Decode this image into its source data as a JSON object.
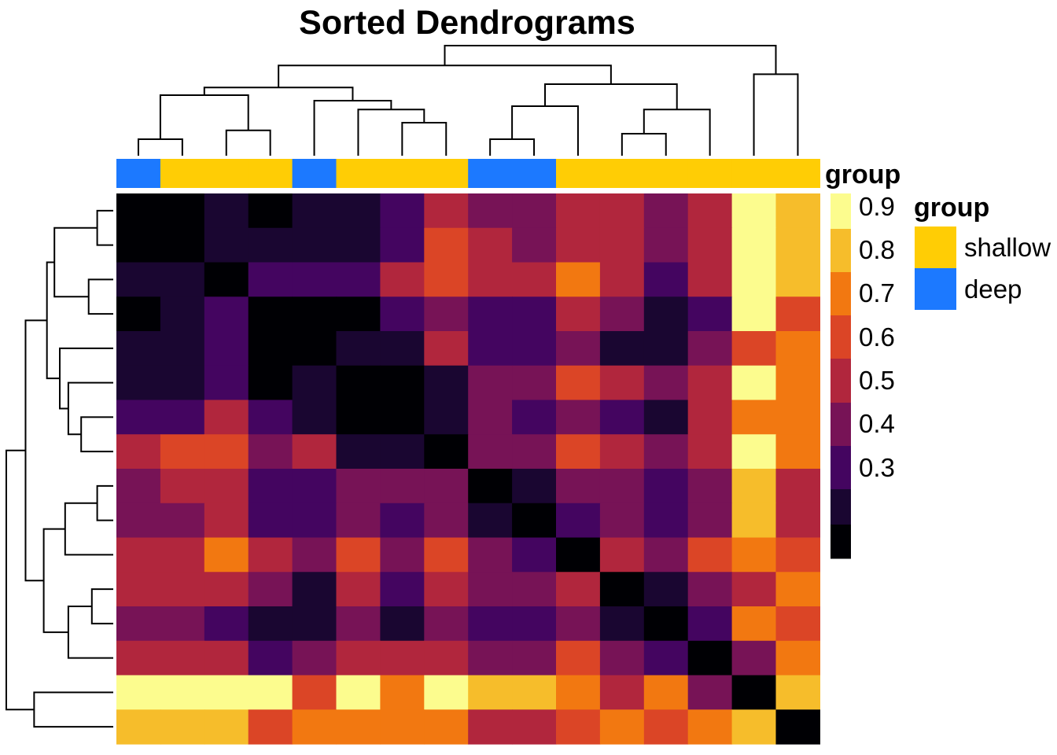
{
  "chart_data": {
    "type": "heatmap",
    "title": "Sorted Dendrograms",
    "matrix": [
      [
        0.25,
        0.25,
        0.3,
        0.25,
        0.3,
        0.3,
        0.35,
        0.55,
        0.5,
        0.5,
        0.55,
        0.55,
        0.5,
        0.55,
        0.9,
        0.8
      ],
      [
        0.25,
        0.25,
        0.3,
        0.3,
        0.3,
        0.3,
        0.35,
        0.65,
        0.55,
        0.5,
        0.55,
        0.55,
        0.5,
        0.55,
        0.9,
        0.8
      ],
      [
        0.3,
        0.3,
        0.25,
        0.35,
        0.35,
        0.35,
        0.55,
        0.65,
        0.55,
        0.55,
        0.75,
        0.55,
        0.35,
        0.55,
        0.9,
        0.8
      ],
      [
        0.25,
        0.3,
        0.35,
        0.25,
        0.25,
        0.25,
        0.35,
        0.5,
        0.35,
        0.35,
        0.55,
        0.5,
        0.3,
        0.35,
        0.9,
        0.65
      ],
      [
        0.3,
        0.3,
        0.35,
        0.25,
        0.25,
        0.3,
        0.3,
        0.55,
        0.35,
        0.35,
        0.5,
        0.3,
        0.3,
        0.5,
        0.65,
        0.75
      ],
      [
        0.3,
        0.3,
        0.35,
        0.25,
        0.3,
        0.25,
        0.25,
        0.3,
        0.5,
        0.5,
        0.65,
        0.55,
        0.5,
        0.55,
        0.9,
        0.75
      ],
      [
        0.35,
        0.35,
        0.55,
        0.35,
        0.3,
        0.25,
        0.25,
        0.3,
        0.5,
        0.35,
        0.5,
        0.35,
        0.3,
        0.55,
        0.75,
        0.75
      ],
      [
        0.55,
        0.65,
        0.65,
        0.5,
        0.55,
        0.3,
        0.3,
        0.25,
        0.5,
        0.5,
        0.65,
        0.55,
        0.5,
        0.55,
        0.9,
        0.75
      ],
      [
        0.5,
        0.55,
        0.55,
        0.35,
        0.35,
        0.5,
        0.5,
        0.5,
        0.25,
        0.3,
        0.5,
        0.5,
        0.35,
        0.5,
        0.8,
        0.55
      ],
      [
        0.5,
        0.5,
        0.55,
        0.35,
        0.35,
        0.5,
        0.35,
        0.5,
        0.3,
        0.25,
        0.35,
        0.5,
        0.35,
        0.5,
        0.8,
        0.55
      ],
      [
        0.55,
        0.55,
        0.75,
        0.55,
        0.5,
        0.65,
        0.5,
        0.65,
        0.5,
        0.35,
        0.25,
        0.55,
        0.5,
        0.65,
        0.75,
        0.65
      ],
      [
        0.55,
        0.55,
        0.55,
        0.5,
        0.3,
        0.55,
        0.35,
        0.55,
        0.5,
        0.5,
        0.55,
        0.25,
        0.3,
        0.5,
        0.55,
        0.75
      ],
      [
        0.5,
        0.5,
        0.35,
        0.3,
        0.3,
        0.5,
        0.3,
        0.5,
        0.35,
        0.35,
        0.5,
        0.3,
        0.25,
        0.35,
        0.75,
        0.65
      ],
      [
        0.55,
        0.55,
        0.55,
        0.35,
        0.5,
        0.55,
        0.55,
        0.55,
        0.5,
        0.5,
        0.65,
        0.5,
        0.35,
        0.25,
        0.5,
        0.75
      ],
      [
        0.9,
        0.9,
        0.9,
        0.9,
        0.65,
        0.9,
        0.75,
        0.9,
        0.8,
        0.8,
        0.75,
        0.55,
        0.75,
        0.5,
        0.25,
        0.8
      ],
      [
        0.8,
        0.8,
        0.8,
        0.65,
        0.75,
        0.75,
        0.75,
        0.75,
        0.55,
        0.55,
        0.65,
        0.75,
        0.65,
        0.75,
        0.8,
        0.25
      ]
    ],
    "column_groups": [
      "deep",
      "shallow",
      "shallow",
      "shallow",
      "deep",
      "shallow",
      "shallow",
      "shallow",
      "deep",
      "deep",
      "shallow",
      "shallow",
      "shallow",
      "shallow",
      "shallow",
      "shallow"
    ],
    "annotation_label": "group",
    "color_scale": {
      "title": "group",
      "ticks": [
        "0.9",
        "0.8",
        "0.7",
        "0.6",
        "0.5",
        "0.4",
        "0.3"
      ],
      "colors": [
        "#fcfc8e",
        "#f6bd2b",
        "#f27811",
        "#db4526",
        "#b1263d",
        "#771356",
        "#440560",
        "#1a0631",
        "#000004"
      ]
    },
    "legend": {
      "title": "group",
      "entries": [
        {
          "label": "shallow",
          "color": "#ffcd05"
        },
        {
          "label": "deep",
          "color": "#1c79ff"
        }
      ]
    },
    "grid": false,
    "legend_position": "right"
  }
}
